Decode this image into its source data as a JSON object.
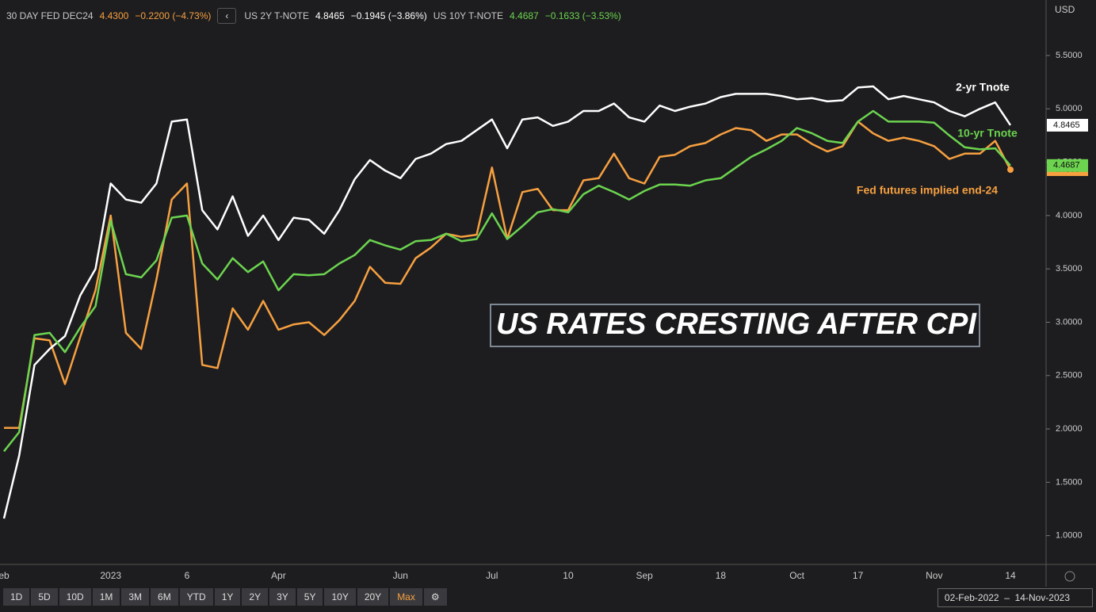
{
  "chart_data": {
    "type": "line",
    "currency": "USD",
    "annotation_box": "US RATES CRESTING AFTER CPI",
    "annotations": [
      {
        "text": "2-yr Tnote",
        "color": "#ffffff"
      },
      {
        "text": "10-yr Tnote",
        "color": "#6cd44f"
      },
      {
        "text": "Fed futures implied end-24",
        "color": "#f7a040"
      }
    ],
    "categories": [
      "eb",
      null,
      null,
      null,
      null,
      null,
      null,
      "2023",
      null,
      null,
      null,
      null,
      "6",
      null,
      null,
      null,
      null,
      null,
      "Apr",
      null,
      null,
      null,
      null,
      null,
      null,
      null,
      "Jun",
      null,
      null,
      null,
      null,
      null,
      "Jul",
      null,
      null,
      null,
      null,
      "10",
      null,
      null,
      null,
      null,
      "Sep",
      null,
      null,
      null,
      null,
      "18",
      null,
      null,
      null,
      null,
      "Oct",
      null,
      null,
      null,
      "17",
      null,
      null,
      null,
      null,
      "Nov",
      null,
      null,
      null,
      null,
      "14"
    ],
    "series": [
      {
        "name": "30 DAY FED DEC24",
        "color": "#f7a040",
        "price": "4.4300",
        "change": "−0.2200 (−4.73%)",
        "values": [
          2.01,
          2.01,
          2.85,
          2.83,
          2.42,
          2.86,
          3.3,
          4.0,
          2.9,
          2.75,
          3.4,
          4.15,
          4.3,
          2.6,
          2.57,
          3.13,
          2.93,
          3.2,
          2.93,
          2.98,
          3.0,
          2.88,
          3.02,
          3.2,
          3.52,
          3.37,
          3.36,
          3.6,
          3.7,
          3.83,
          3.8,
          3.82,
          4.45,
          3.78,
          4.22,
          4.25,
          4.05,
          4.05,
          4.33,
          4.35,
          4.58,
          4.35,
          4.3,
          4.55,
          4.57,
          4.65,
          4.68,
          4.76,
          4.82,
          4.8,
          4.7,
          4.76,
          4.76,
          4.67,
          4.6,
          4.65,
          4.88,
          4.77,
          4.7,
          4.73,
          4.7,
          4.65,
          4.53,
          4.58,
          4.58,
          4.7,
          4.43
        ]
      },
      {
        "name": "US 2Y T-NOTE",
        "color": "#ffffff",
        "price": "4.8465",
        "change": "−0.1945 (−3.86%)",
        "values": [
          1.16,
          1.75,
          2.6,
          2.75,
          2.87,
          3.25,
          3.5,
          4.3,
          4.15,
          4.12,
          4.3,
          4.88,
          4.9,
          4.05,
          3.87,
          4.18,
          3.81,
          4.0,
          3.77,
          3.98,
          3.96,
          3.83,
          4.05,
          4.34,
          4.52,
          4.42,
          4.35,
          4.53,
          4.58,
          4.67,
          4.7,
          4.8,
          4.9,
          4.63,
          4.9,
          4.92,
          4.84,
          4.88,
          4.98,
          4.98,
          5.05,
          4.92,
          4.88,
          5.03,
          4.98,
          5.02,
          5.05,
          5.11,
          5.14,
          5.14,
          5.14,
          5.12,
          5.09,
          5.1,
          5.07,
          5.08,
          5.2,
          5.21,
          5.09,
          5.12,
          5.09,
          5.06,
          4.98,
          4.93,
          5.0,
          5.06,
          4.8465
        ]
      },
      {
        "name": "US 10Y T-NOTE",
        "color": "#6cd44f",
        "price": "4.4687",
        "change": "−0.1633 (−3.53%)",
        "values": [
          1.79,
          1.97,
          2.88,
          2.9,
          2.72,
          2.95,
          3.15,
          3.95,
          3.45,
          3.42,
          3.58,
          3.98,
          4.0,
          3.55,
          3.4,
          3.6,
          3.47,
          3.57,
          3.3,
          3.45,
          3.44,
          3.45,
          3.55,
          3.63,
          3.77,
          3.72,
          3.68,
          3.76,
          3.77,
          3.83,
          3.76,
          3.78,
          4.02,
          3.78,
          3.9,
          4.03,
          4.06,
          4.03,
          4.2,
          4.28,
          4.22,
          4.15,
          4.23,
          4.29,
          4.29,
          4.28,
          4.33,
          4.35,
          4.45,
          4.55,
          4.62,
          4.7,
          4.82,
          4.77,
          4.7,
          4.68,
          4.88,
          4.98,
          4.88,
          4.88,
          4.88,
          4.87,
          4.75,
          4.64,
          4.62,
          4.63,
          4.4687
        ]
      }
    ],
    "ylim": [
      0.73,
      6.02
    ],
    "yticks": [
      {
        "value": 1,
        "label": "1.0000"
      },
      {
        "value": 1.5,
        "label": "1.5000"
      },
      {
        "value": 2,
        "label": "2.0000"
      },
      {
        "value": 2.5,
        "label": "2.5000"
      },
      {
        "value": 3,
        "label": "3.0000"
      },
      {
        "value": 3.5,
        "label": "3.5000"
      },
      {
        "value": 4,
        "label": "4.0000"
      },
      {
        "value": 4.5,
        "label": "4.5000"
      },
      {
        "value": 5,
        "label": "5.0000"
      },
      {
        "value": 5.5,
        "label": "5.5000"
      }
    ],
    "ranges": [
      "1D",
      "5D",
      "10D",
      "1M",
      "3M",
      "6M",
      "YTD",
      "1Y",
      "2Y",
      "3Y",
      "5Y",
      "10Y",
      "20Y",
      "Max"
    ],
    "active_range": 13,
    "date_range": "02-Feb-2022  –  14-Nov-2023"
  }
}
